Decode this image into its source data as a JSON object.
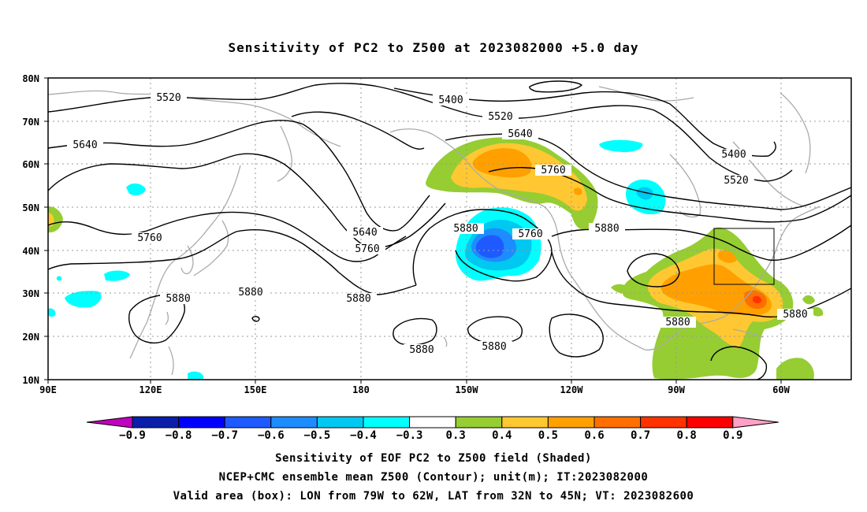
{
  "title": "Sensitivity of PC2 to Z500 at 2023082000 +5.0 day",
  "axes": {
    "y_ticks": [
      "80N",
      "70N",
      "60N",
      "50N",
      "40N",
      "30N",
      "20N",
      "10N"
    ],
    "x_ticks": [
      "90E",
      "120E",
      "150E",
      "180",
      "150W",
      "120W",
      "90W",
      "60W"
    ]
  },
  "contour_labels": [
    {
      "id": "c1",
      "text": "5520"
    },
    {
      "id": "c2",
      "text": "5400"
    },
    {
      "id": "c3",
      "text": "5520"
    },
    {
      "id": "c4",
      "text": "5640"
    },
    {
      "id": "c5",
      "text": "5640"
    },
    {
      "id": "c6",
      "text": "5760"
    },
    {
      "id": "c7",
      "text": "5400"
    },
    {
      "id": "c8",
      "text": "5520"
    },
    {
      "id": "c9",
      "text": "5880"
    },
    {
      "id": "c10",
      "text": "5760"
    },
    {
      "id": "c11",
      "text": "5880"
    },
    {
      "id": "c12",
      "text": "5640"
    },
    {
      "id": "c13",
      "text": "5760"
    },
    {
      "id": "c14",
      "text": "5760"
    },
    {
      "id": "c15",
      "text": "5880"
    },
    {
      "id": "c16",
      "text": "5880"
    },
    {
      "id": "c17",
      "text": "5880"
    },
    {
      "id": "c18",
      "text": "5880"
    },
    {
      "id": "c19",
      "text": "5880"
    },
    {
      "id": "c20",
      "text": "5880"
    },
    {
      "id": "c21",
      "text": "5880"
    }
  ],
  "colorbar": {
    "labels": [
      "-0.9",
      "-0.8",
      "-0.7",
      "-0.6",
      "-0.5",
      "-0.4",
      "-0.3",
      "0.3",
      "0.4",
      "0.5",
      "0.6",
      "0.7",
      "0.8",
      "0.9"
    ],
    "colors": [
      "#c000c0",
      "#0a1eaa",
      "#0000ff",
      "#1e5aff",
      "#1e8cff",
      "#00c8f0",
      "#00ffff",
      "#ffffff",
      "#96cd32",
      "#ffc832",
      "#ffa000",
      "#ff6e00",
      "#ff3200",
      "#ff0000",
      "#ffa0c8"
    ]
  },
  "captions": [
    "Sensitivity of EOF PC2 to Z500 field (Shaded)",
    "NCEP+CMC ensemble mean Z500 (Contour); unit(m); IT:2023082000",
    "Valid area (box): LON from 79W to 62W, LAT from 32N to 45N; VT: 2023082600"
  ]
}
